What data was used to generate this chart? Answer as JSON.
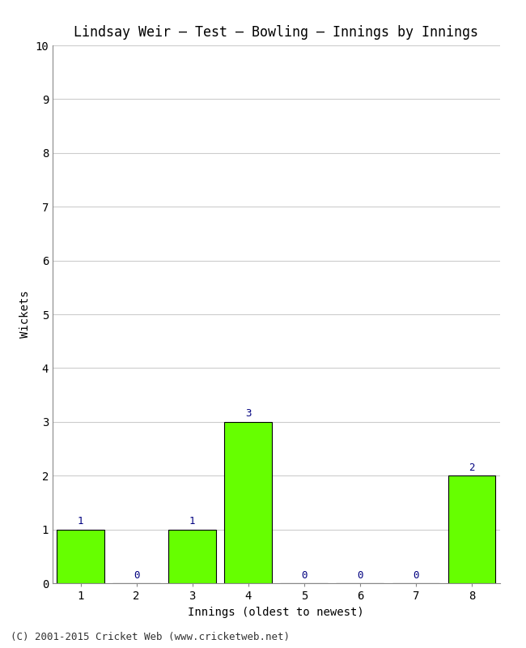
{
  "title": "Lindsay Weir – Test – Bowling – Innings by Innings",
  "xlabel": "Innings (oldest to newest)",
  "ylabel": "Wickets",
  "categories": [
    "1",
    "2",
    "3",
    "4",
    "5",
    "6",
    "7",
    "8"
  ],
  "values": [
    1,
    0,
    1,
    3,
    0,
    0,
    0,
    2
  ],
  "bar_color": "#66ff00",
  "bar_edge_color": "#000000",
  "annotation_color": "#000080",
  "ylim": [
    0,
    10
  ],
  "yticks": [
    0,
    1,
    2,
    3,
    4,
    5,
    6,
    7,
    8,
    9,
    10
  ],
  "background_color": "#ffffff",
  "plot_bg_color": "#ffffff",
  "title_fontsize": 12,
  "axis_label_fontsize": 10,
  "tick_fontsize": 10,
  "annotation_fontsize": 9,
  "footer": "(C) 2001-2015 Cricket Web (www.cricketweb.net)",
  "footer_fontsize": 9,
  "grid_color": "#cccccc",
  "font_family": "monospace"
}
